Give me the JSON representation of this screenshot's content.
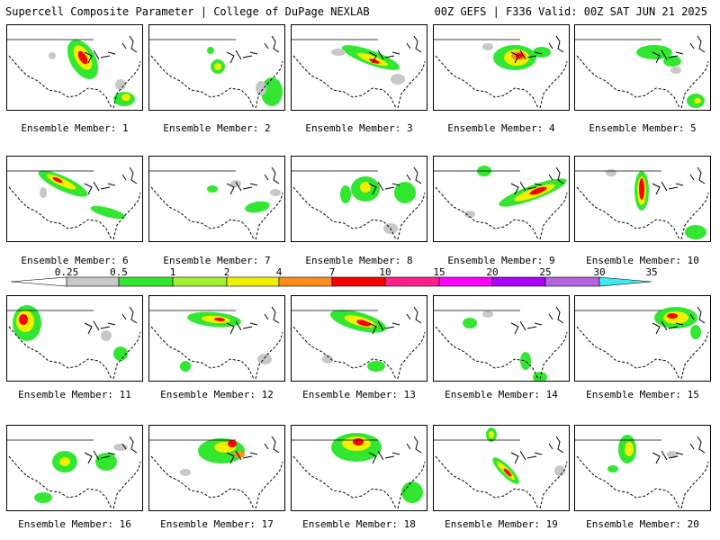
{
  "header": {
    "left": "Supercell Composite Parameter | College of DuPage NEXLAB",
    "right": "00Z GEFS | F336 Valid: 00Z SAT JUN 21 2025"
  },
  "panels": [
    {
      "label": "Ensemble Member: 1"
    },
    {
      "label": "Ensemble Member: 2"
    },
    {
      "label": "Ensemble Member: 3"
    },
    {
      "label": "Ensemble Member: 4"
    },
    {
      "label": "Ensemble Member: 5"
    },
    {
      "label": "Ensemble Member: 6"
    },
    {
      "label": "Ensemble Member: 7"
    },
    {
      "label": "Ensemble Member: 8"
    },
    {
      "label": "Ensemble Member: 9"
    },
    {
      "label": "Ensemble Member: 10"
    },
    {
      "label": "Ensemble Member: 11"
    },
    {
      "label": "Ensemble Member: 12"
    },
    {
      "label": "Ensemble Member: 13"
    },
    {
      "label": "Ensemble Member: 14"
    },
    {
      "label": "Ensemble Member: 15"
    },
    {
      "label": "Ensemble Member: 16"
    },
    {
      "label": "Ensemble Member: 17"
    },
    {
      "label": "Ensemble Member: 18"
    },
    {
      "label": "Ensemble Member: 19"
    },
    {
      "label": "Ensemble Member: 20"
    }
  ],
  "colorbar": {
    "ticks": [
      "0.25",
      "0.5",
      "1",
      "2",
      "4",
      "7",
      "10",
      "15",
      "20",
      "25",
      "30",
      "35"
    ],
    "colors": [
      "#c8c8c8",
      "#32e632",
      "#a0f032",
      "#f0f000",
      "#ff8c1e",
      "#ff0000",
      "#ff1e8c",
      "#ff00ff",
      "#aa00ff",
      "#b464dc",
      "#40e8f0"
    ],
    "left_color": "#ffffff"
  }
}
